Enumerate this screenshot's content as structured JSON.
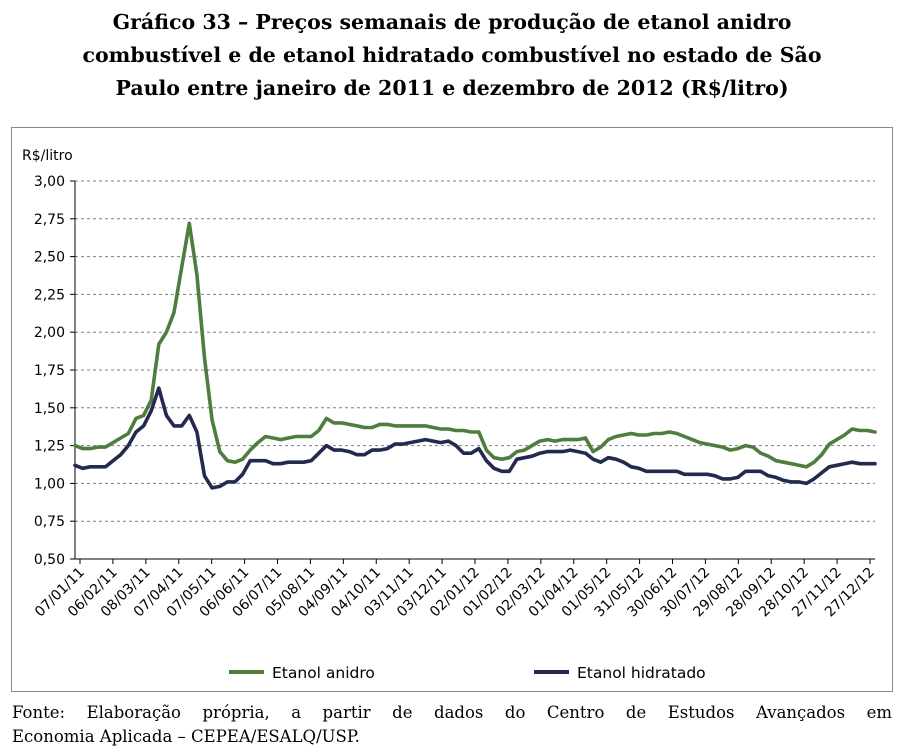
{
  "title": {
    "line1": "Gráfico 33 – Preços semanais de produção de etanol anidro",
    "line2": "combustível e de etanol hidratado combustível no estado de São",
    "line3": "Paulo entre janeiro de 2011 e dezembro de 2012 (R$/litro)"
  },
  "source": {
    "line1": "Fonte: Elaboração própria, a partir de dados do Centro de Estudos Avançados em",
    "line2": "Economia Aplicada – CEPEA/ESALQ/USP."
  },
  "colors": {
    "anidro": "#4e7d3e",
    "hidratado": "#242a4f",
    "grid": "#7f7f7f"
  },
  "chart_data": {
    "type": "line",
    "title": "",
    "xlabel": "",
    "ylabel": "R$/litro",
    "ylim": [
      0.5,
      3.0
    ],
    "yticks": [
      "3,00",
      "2,75",
      "2,50",
      "2,25",
      "2,00",
      "1,75",
      "1,50",
      "1,25",
      "1,00",
      "0,75",
      "0,50"
    ],
    "x_tick_labels": [
      "07/01/11",
      "06/02/11",
      "08/03/11",
      "07/04/11",
      "07/05/11",
      "06/06/11",
      "06/07/11",
      "05/08/11",
      "04/09/11",
      "04/10/11",
      "03/11/11",
      "03/12/11",
      "02/01/12",
      "01/02/12",
      "02/03/12",
      "01/04/12",
      "01/05/12",
      "31/05/12",
      "30/06/12",
      "30/07/12",
      "29/08/12",
      "28/09/12",
      "28/10/12",
      "27/11/12",
      "27/12/12"
    ],
    "grid": "horizontal, dashed",
    "legend": "bottom",
    "series": [
      {
        "name": "Etanol anidro",
        "values": [
          1.25,
          1.23,
          1.23,
          1.24,
          1.24,
          1.27,
          1.3,
          1.33,
          1.43,
          1.45,
          1.55,
          1.92,
          2.0,
          2.13,
          2.43,
          2.72,
          2.38,
          1.83,
          1.42,
          1.21,
          1.15,
          1.14,
          1.16,
          1.22,
          1.27,
          1.31,
          1.3,
          1.29,
          1.3,
          1.31,
          1.31,
          1.31,
          1.35,
          1.43,
          1.4,
          1.4,
          1.39,
          1.38,
          1.37,
          1.37,
          1.39,
          1.39,
          1.38,
          1.38,
          1.38,
          1.38,
          1.38,
          1.37,
          1.36,
          1.36,
          1.35,
          1.35,
          1.34,
          1.34,
          1.22,
          1.17,
          1.16,
          1.17,
          1.21,
          1.22,
          1.25,
          1.28,
          1.29,
          1.28,
          1.29,
          1.29,
          1.29,
          1.3,
          1.21,
          1.24,
          1.29,
          1.31,
          1.32,
          1.33,
          1.32,
          1.32,
          1.33,
          1.33,
          1.34,
          1.33,
          1.31,
          1.29,
          1.27,
          1.26,
          1.25,
          1.24,
          1.22,
          1.23,
          1.25,
          1.24,
          1.2,
          1.18,
          1.15,
          1.14,
          1.13,
          1.12,
          1.11,
          1.14,
          1.19,
          1.26,
          1.29,
          1.32,
          1.36,
          1.35,
          1.35,
          1.34
        ],
        "color": "#4e7d3e"
      },
      {
        "name": "Etanol hidratado",
        "values": [
          1.12,
          1.1,
          1.11,
          1.11,
          1.11,
          1.15,
          1.19,
          1.25,
          1.34,
          1.38,
          1.48,
          1.63,
          1.45,
          1.38,
          1.38,
          1.45,
          1.34,
          1.05,
          0.97,
          0.98,
          1.01,
          1.01,
          1.06,
          1.15,
          1.15,
          1.15,
          1.13,
          1.13,
          1.14,
          1.14,
          1.14,
          1.15,
          1.2,
          1.25,
          1.22,
          1.22,
          1.21,
          1.19,
          1.19,
          1.22,
          1.22,
          1.23,
          1.26,
          1.26,
          1.27,
          1.28,
          1.29,
          1.28,
          1.27,
          1.28,
          1.25,
          1.2,
          1.2,
          1.23,
          1.15,
          1.1,
          1.08,
          1.08,
          1.16,
          1.17,
          1.18,
          1.2,
          1.21,
          1.21,
          1.21,
          1.22,
          1.21,
          1.2,
          1.16,
          1.14,
          1.17,
          1.16,
          1.14,
          1.11,
          1.1,
          1.08,
          1.08,
          1.08,
          1.08,
          1.08,
          1.06,
          1.06,
          1.06,
          1.06,
          1.05,
          1.03,
          1.03,
          1.04,
          1.08,
          1.08,
          1.08,
          1.05,
          1.04,
          1.02,
          1.01,
          1.01,
          1.0,
          1.03,
          1.07,
          1.11,
          1.12,
          1.13,
          1.14,
          1.13,
          1.13,
          1.13
        ],
        "color": "#242a4f"
      }
    ]
  }
}
